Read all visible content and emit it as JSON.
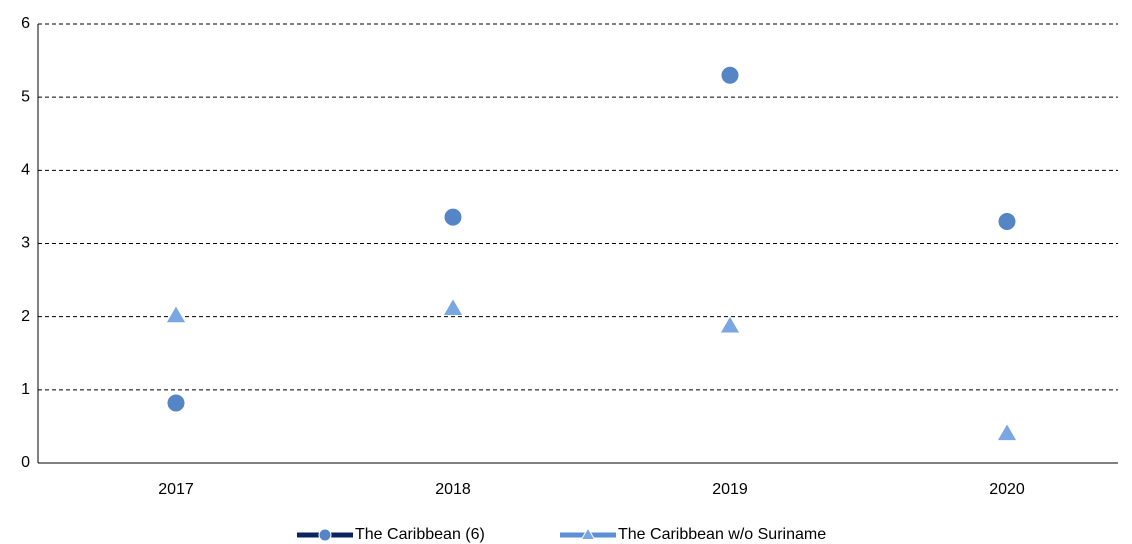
{
  "chart_data": {
    "type": "line",
    "categories": [
      "2017",
      "2018",
      "2019",
      "2020"
    ],
    "series": [
      {
        "name": "The Caribbean (6)",
        "color": "#0c2461",
        "marker_color": "#5585c5",
        "marker": "circle",
        "values": [
          0.82,
          3.36,
          5.3,
          3.3
        ]
      },
      {
        "name": "The Caribbean w/o Suriname",
        "color": "#5b8fd6",
        "marker_color": "#7aa6e2",
        "marker": "triangle",
        "values": [
          2.01,
          2.11,
          1.87,
          0.4
        ]
      }
    ],
    "ylim": [
      0,
      6
    ],
    "yticks": [
      0,
      1,
      2,
      3,
      4,
      5,
      6
    ],
    "grid": true,
    "legend": "bottom"
  }
}
